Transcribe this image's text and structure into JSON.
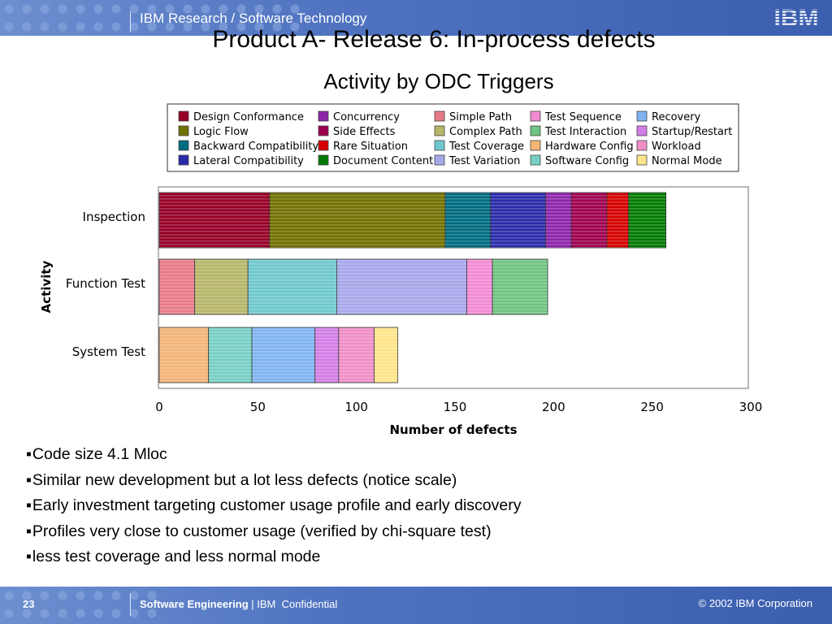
{
  "header": {
    "text": "IBM Research / Software Technology",
    "logo_text": "IBM"
  },
  "title": "Product A- Release 6: In-process defects",
  "subtitle": "Activity by  ODC Triggers",
  "chart_data": {
    "type": "bar",
    "orientation": "horizontal",
    "stacked": true,
    "xlabel": "Number of defects",
    "ylabel": "Activity",
    "xlim": [
      0,
      300
    ],
    "xticks": [
      0,
      50,
      100,
      150,
      200,
      250,
      300
    ],
    "grid": false,
    "legend_placement": "top",
    "categories": [
      "Inspection",
      "Function Test",
      "System Test"
    ],
    "legend": [
      {
        "name": "Design Conformance",
        "color": "#960027"
      },
      {
        "name": "Logic Flow",
        "color": "#717100"
      },
      {
        "name": "Backward Compatibility",
        "color": "#006b80"
      },
      {
        "name": "Lateral Compatibility",
        "color": "#2a2aaa"
      },
      {
        "name": "Concurrency",
        "color": "#8e24aa"
      },
      {
        "name": "Side Effects",
        "color": "#9e0050"
      },
      {
        "name": "Rare Situation",
        "color": "#d50000"
      },
      {
        "name": "Document Content",
        "color": "#007a00"
      },
      {
        "name": "Simple Path",
        "color": "#e87a87"
      },
      {
        "name": "Complex Path",
        "color": "#b6b66a"
      },
      {
        "name": "Test Coverage",
        "color": "#6ec8ce"
      },
      {
        "name": "Test Variation",
        "color": "#a7a7ea"
      },
      {
        "name": "Test Sequence",
        "color": "#f28ad4"
      },
      {
        "name": "Test Interaction",
        "color": "#6ec480"
      },
      {
        "name": "Hardware Config",
        "color": "#f2b577"
      },
      {
        "name": "Software Config",
        "color": "#77cfc4"
      },
      {
        "name": "Recovery",
        "color": "#80b3f2"
      },
      {
        "name": "Startup/Restart",
        "color": "#d27ee6"
      },
      {
        "name": "Workload",
        "color": "#ef8ec6"
      },
      {
        "name": "Normal Mode",
        "color": "#ffe48a"
      }
    ],
    "series_by_category": [
      [
        {
          "name": "Design Conformance",
          "value": 56
        },
        {
          "name": "Logic Flow",
          "value": 89
        },
        {
          "name": "Backward Compatibility",
          "value": 23
        },
        {
          "name": "Lateral Compatibility",
          "value": 28
        },
        {
          "name": "Concurrency",
          "value": 13
        },
        {
          "name": "Side Effects",
          "value": 18
        },
        {
          "name": "Rare Situation",
          "value": 11
        },
        {
          "name": "Document Content",
          "value": 19
        }
      ],
      [
        {
          "name": "Simple Path",
          "value": 18
        },
        {
          "name": "Complex Path",
          "value": 27
        },
        {
          "name": "Test Coverage",
          "value": 45
        },
        {
          "name": "Test Variation",
          "value": 66
        },
        {
          "name": "Test Sequence",
          "value": 13
        },
        {
          "name": "Test Interaction",
          "value": 28
        }
      ],
      [
        {
          "name": "Hardware Config",
          "value": 25
        },
        {
          "name": "Software Config",
          "value": 22
        },
        {
          "name": "Recovery",
          "value": 32
        },
        {
          "name": "Startup/Restart",
          "value": 12
        },
        {
          "name": "Workload",
          "value": 18
        },
        {
          "name": "Normal Mode",
          "value": 12
        }
      ]
    ]
  },
  "bullets": [
    "Code size 4.1 Mloc",
    "Similar new development but a lot less defects (notice scale)",
    "Early investment targeting customer usage profile and early discovery",
    "Profiles very close to customer usage (verified by chi-square test)",
    "less test coverage and less normal mode"
  ],
  "footer": {
    "page_number": "23",
    "product": "Software Engineering",
    "company": "| IBM",
    "classification": "Confidential",
    "copyright": "© 2002 IBM Corporation"
  }
}
